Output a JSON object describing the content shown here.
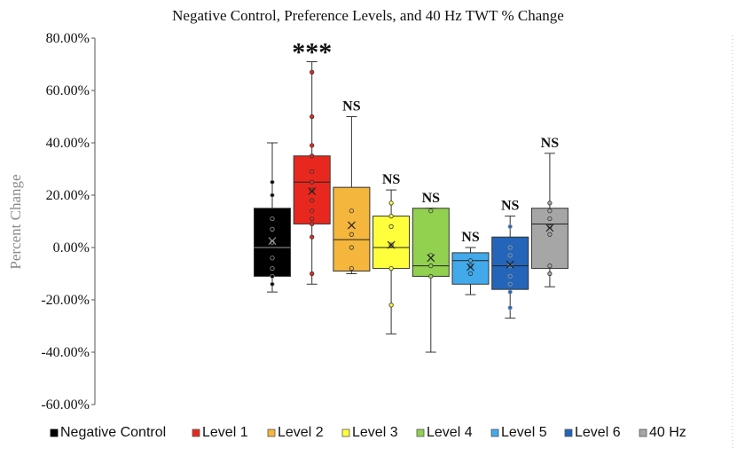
{
  "chart_data": {
    "type": "box",
    "title": "Negative Control, Preference Levels, and 40 Hz TWT % Change",
    "ylabel": "Percent Change",
    "xlabel": "",
    "ylim": [
      -60,
      80
    ],
    "yticks": [
      80,
      60,
      40,
      20,
      0,
      -20,
      -40,
      -60
    ],
    "ytick_labels": [
      "80.00%",
      "60.00%",
      "40.00%",
      "20.00%",
      "0.00%",
      "-20.00%",
      "-40.00%",
      "-60.00%"
    ],
    "grid": false,
    "legend_position": "bottom",
    "series": [
      {
        "name": "Negative Control",
        "color": "#000000",
        "min": -17,
        "q1": -11,
        "median": 0,
        "q3": 15,
        "max": 40,
        "mean": 2.5,
        "points": [
          25,
          20,
          11,
          7,
          2,
          -4,
          -8,
          -11,
          -14
        ],
        "annotation": ""
      },
      {
        "name": "Level 1",
        "color": "#e8281e",
        "min": -14,
        "q1": 9,
        "median": 25,
        "q3": 35,
        "max": 71,
        "mean": 21.5,
        "points": [
          67,
          50,
          39,
          35,
          29,
          25,
          22,
          18,
          14,
          11,
          9,
          4,
          -10
        ],
        "annotation": "***"
      },
      {
        "name": "Level 2",
        "color": "#f4b63c",
        "min": -10,
        "q1": -9,
        "median": 3,
        "q3": 23,
        "max": 50,
        "mean": 8.5,
        "points": [
          14,
          5,
          0,
          -8
        ],
        "annotation": "NS"
      },
      {
        "name": "Level 3",
        "color": "#ffff3c",
        "min": -33,
        "q1": -8,
        "median": 0,
        "q3": 12,
        "max": 22,
        "mean": 1,
        "points": [
          17,
          12,
          8,
          1,
          -8,
          -22
        ],
        "annotation": "NS"
      },
      {
        "name": "Level 4",
        "color": "#92d050",
        "min": -40,
        "q1": -11,
        "median": -7,
        "q3": 15,
        "max": 15,
        "mean": -4,
        "points": [
          14,
          -3,
          -7,
          -11
        ],
        "annotation": "NS"
      },
      {
        "name": "Level 5",
        "color": "#42aaea",
        "min": -18,
        "q1": -14,
        "median": -5,
        "q3": -2,
        "max": 0,
        "mean": -7.5,
        "points": [
          -5,
          -7,
          -10
        ],
        "annotation": "NS"
      },
      {
        "name": "Level 6",
        "color": "#2465b9",
        "min": -27,
        "q1": -16,
        "median": -7,
        "q3": 4,
        "max": 12,
        "mean": -6.5,
        "points": [
          8,
          0,
          -3,
          -7,
          -11,
          -14,
          -17,
          -23
        ],
        "annotation": "NS"
      },
      {
        "name": "40 Hz",
        "color": "#a6a6a6",
        "min": -15,
        "q1": -8,
        "median": 9,
        "q3": 15,
        "max": 36,
        "mean": 7.5,
        "points": [
          17,
          14,
          11,
          8,
          5,
          -7,
          -10
        ],
        "annotation": "NS"
      }
    ]
  }
}
